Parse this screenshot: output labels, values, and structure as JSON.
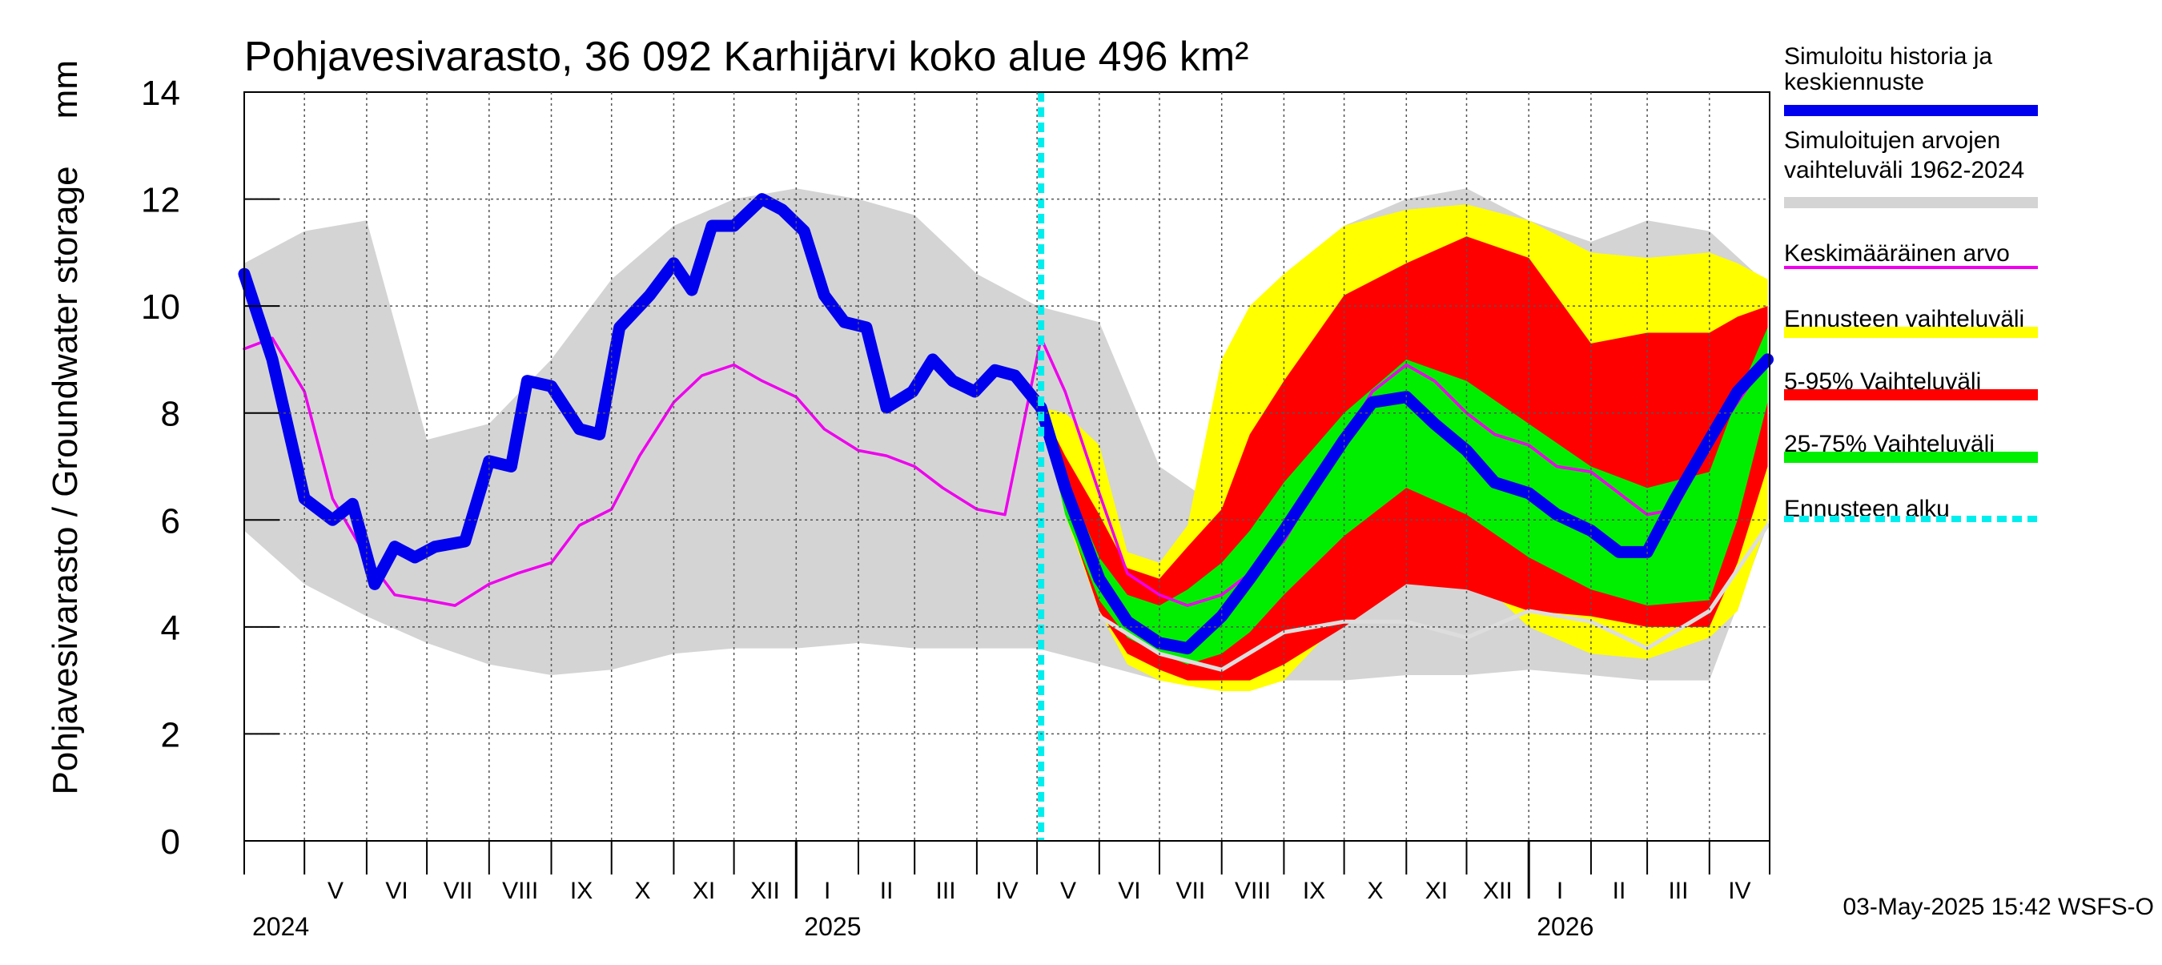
{
  "chart_data": {
    "type": "area",
    "title": "Pohjavesivarasto, 36 092 Karhijärvi koko alue 496 km²",
    "ylabel": "Pohjavesivarasto / Groundwater storage",
    "yunit": "mm",
    "ylim": [
      0,
      14
    ],
    "yticks": [
      "0",
      "2",
      "4",
      "6",
      "8",
      "10",
      "12",
      "14"
    ],
    "xlim": [
      "2024-04-01",
      "2026-05-01"
    ],
    "grid": true,
    "legend_position": "right",
    "months": [
      "V",
      "VI",
      "VII",
      "VIII",
      "IX",
      "X",
      "XI",
      "XII",
      "I",
      "II",
      "III",
      "IV",
      "V",
      "VI",
      "VII",
      "VIII",
      "IX",
      "X",
      "XI",
      "XII",
      "I",
      "II",
      "III",
      "IV"
    ],
    "years": [
      "2024",
      "2025",
      "2026"
    ],
    "forecast_start": "2025-05-03",
    "timestamp": "03-May-2025 15:42 WSFS-O",
    "colors": {
      "history": "#0000ee",
      "range": "#d4d4d4",
      "mean": "#ee00ee",
      "forecast_range": "#ffff00",
      "p5_95": "#ff0000",
      "p25_75": "#00ee00",
      "forecast_start": "#00eeee"
    },
    "legend": [
      {
        "label": "Simuloitu historia ja keskiennuste",
        "color": "#0000ee",
        "style": "thick"
      },
      {
        "label": "Simuloitujen arvojen vaihteluväli 1962-2024",
        "color": "#d4d4d4",
        "style": "thick"
      },
      {
        "label": "Keskimääräinen arvo",
        "color": "#ee00ee",
        "style": "thin"
      },
      {
        "label": "Ennusteen vaihteluväli",
        "color": "#ffff00",
        "style": "thick"
      },
      {
        "label": "5-95% Vaihteluväli",
        "color": "#ff0000",
        "style": "thick"
      },
      {
        "label": "25-75% Vaihteluväli",
        "color": "#00ee00",
        "style": "thick"
      },
      {
        "label": "Ennusteen alku",
        "color": "#00eeee",
        "style": "dashed"
      }
    ],
    "series": [
      {
        "name": "Simuloitu historia ja keskiennuste",
        "x": [
          "2024-04-01",
          "2024-04-15",
          "2024-05-01",
          "2024-05-15",
          "2024-05-25",
          "2024-06-05",
          "2024-06-15",
          "2024-06-25",
          "2024-07-05",
          "2024-07-20",
          "2024-08-01",
          "2024-08-12",
          "2024-08-20",
          "2024-09-01",
          "2024-09-15",
          "2024-09-25",
          "2024-10-05",
          "2024-10-20",
          "2024-11-01",
          "2024-11-10",
          "2024-11-20",
          "2024-12-01",
          "2024-12-15",
          "2024-12-25",
          "2025-01-05",
          "2025-01-15",
          "2025-01-25",
          "2025-02-05",
          "2025-02-15",
          "2025-02-28",
          "2025-03-10",
          "2025-03-20",
          "2025-03-31",
          "2025-04-10",
          "2025-04-20",
          "2025-05-03",
          "2025-05-15",
          "2025-06-01",
          "2025-06-15",
          "2025-07-01",
          "2025-07-15",
          "2025-08-01",
          "2025-08-15",
          "2025-09-01",
          "2025-09-15",
          "2025-10-01",
          "2025-10-15",
          "2025-11-01",
          "2025-11-15",
          "2025-12-01",
          "2025-12-15",
          "2026-01-01",
          "2026-01-15",
          "2026-02-01",
          "2026-02-15",
          "2026-03-01",
          "2026-03-15",
          "2026-04-01",
          "2026-04-15",
          "2026-04-30"
        ],
        "y": [
          10.6,
          9.0,
          6.4,
          6.0,
          6.3,
          4.8,
          5.5,
          5.3,
          5.5,
          5.6,
          7.1,
          7.0,
          8.6,
          8.5,
          7.7,
          7.6,
          9.6,
          10.2,
          10.8,
          10.3,
          11.5,
          11.5,
          12.0,
          11.8,
          11.4,
          10.2,
          9.7,
          9.6,
          8.1,
          8.4,
          9.0,
          8.6,
          8.4,
          8.8,
          8.7,
          8.1,
          6.6,
          4.9,
          4.1,
          3.7,
          3.6,
          4.2,
          4.9,
          5.8,
          6.6,
          7.5,
          8.2,
          8.3,
          7.8,
          7.3,
          6.7,
          6.5,
          6.1,
          5.8,
          5.4,
          5.4,
          6.4,
          7.5,
          8.4,
          9.0
        ]
      },
      {
        "name": "Keskimääräinen arvo",
        "x": [
          "2024-04-01",
          "2024-04-15",
          "2024-05-01",
          "2024-05-15",
          "2024-06-01",
          "2024-06-15",
          "2024-07-01",
          "2024-07-15",
          "2024-08-01",
          "2024-08-15",
          "2024-09-01",
          "2024-09-15",
          "2024-10-01",
          "2024-10-15",
          "2024-11-01",
          "2024-11-15",
          "2024-12-01",
          "2024-12-15",
          "2025-01-01",
          "2025-01-15",
          "2025-02-01",
          "2025-02-15",
          "2025-03-01",
          "2025-03-15",
          "2025-04-01",
          "2025-04-15",
          "2025-05-03",
          "2025-05-15",
          "2025-06-01",
          "2025-06-15",
          "2025-07-01",
          "2025-07-15",
          "2025-08-01",
          "2025-08-15",
          "2025-09-01",
          "2025-09-15",
          "2025-10-01",
          "2025-10-15",
          "2025-11-01",
          "2025-11-15",
          "2025-12-01",
          "2025-12-15",
          "2026-01-01",
          "2026-01-15",
          "2026-02-01",
          "2026-02-15",
          "2026-03-01",
          "2026-03-15",
          "2026-04-01",
          "2026-04-15",
          "2026-04-30"
        ],
        "y": [
          9.2,
          9.4,
          8.4,
          6.4,
          5.3,
          4.6,
          4.5,
          4.4,
          4.8,
          5.0,
          5.2,
          5.9,
          6.2,
          7.2,
          8.2,
          8.7,
          8.9,
          8.6,
          8.3,
          7.7,
          7.3,
          7.2,
          7.0,
          6.6,
          6.2,
          6.1,
          9.4,
          8.4,
          6.5,
          5.0,
          4.6,
          4.4,
          4.6,
          5.0,
          5.6,
          6.5,
          7.5,
          8.4,
          8.9,
          8.6,
          8.0,
          7.6,
          7.4,
          7.0,
          6.9,
          6.5,
          6.1,
          6.2,
          7.4,
          8.2,
          9.0
        ]
      },
      {
        "name": "Simuloitujen arvojen vaihteluväli 1962-2024 (ala)",
        "x": [
          "2025-06-01",
          "2025-07-01",
          "2025-08-01",
          "2025-09-01",
          "2025-10-01",
          "2025-11-01",
          "2025-12-01",
          "2026-01-01",
          "2026-02-01",
          "2026-03-01",
          "2026-04-01",
          "2026-04-30"
        ],
        "y": [
          4.2,
          3.5,
          3.2,
          3.9,
          4.1,
          4.1,
          3.8,
          4.3,
          4.1,
          3.6,
          4.3,
          5.9
        ]
      },
      {
        "name": "Simuloitujen arvojen vaihteluväli 1962-2024",
        "x": [
          "2024-04-01",
          "2024-05-01",
          "2024-06-01",
          "2024-07-01",
          "2024-08-01",
          "2024-09-01",
          "2024-10-01",
          "2024-11-01",
          "2024-12-01",
          "2025-01-01",
          "2025-02-01",
          "2025-03-01",
          "2025-04-01",
          "2025-05-01",
          "2025-06-01",
          "2025-07-01",
          "2025-08-01",
          "2025-09-01",
          "2025-10-01",
          "2025-11-01",
          "2025-12-01",
          "2026-01-01",
          "2026-02-01",
          "2026-03-01",
          "2026-04-01",
          "2026-04-30"
        ],
        "upper": [
          10.8,
          11.4,
          11.6,
          7.5,
          7.8,
          9.0,
          10.5,
          11.5,
          12.0,
          12.2,
          12.0,
          11.7,
          10.6,
          10.0,
          9.7,
          7.0,
          6.2,
          9.6,
          11.5,
          12.0,
          12.2,
          11.6,
          11.2,
          11.6,
          11.4,
          10.4
        ],
        "lower": [
          5.8,
          4.8,
          4.2,
          3.7,
          3.3,
          3.1,
          3.2,
          3.5,
          3.6,
          3.6,
          3.7,
          3.6,
          3.6,
          3.6,
          3.3,
          3.0,
          2.9,
          3.0,
          3.0,
          3.1,
          3.1,
          3.2,
          3.1,
          3.0,
          3.0,
          5.9
        ]
      },
      {
        "name": "Ennusteen vaihteluväli",
        "x": [
          "2025-05-03",
          "2025-05-15",
          "2025-06-01",
          "2025-06-15",
          "2025-07-01",
          "2025-07-15",
          "2025-08-01",
          "2025-08-15",
          "2025-09-01",
          "2025-10-01",
          "2025-11-01",
          "2025-12-01",
          "2026-01-01",
          "2026-02-01",
          "2026-03-01",
          "2026-04-01",
          "2026-04-15",
          "2026-04-30"
        ],
        "upper": [
          8.1,
          8.0,
          7.4,
          5.4,
          5.2,
          5.9,
          9.0,
          10.0,
          10.6,
          11.5,
          11.8,
          11.9,
          11.6,
          11.0,
          10.9,
          11.0,
          10.8,
          10.5
        ],
        "lower": [
          8.1,
          6.1,
          4.3,
          3.3,
          3.0,
          2.9,
          2.8,
          2.8,
          3.0,
          4.2,
          5.6,
          5.1,
          4.0,
          3.5,
          3.4,
          3.8,
          4.3,
          6.0
        ]
      },
      {
        "name": "5-95% Vaihteluväli",
        "x": [
          "2025-05-03",
          "2025-05-15",
          "2025-06-01",
          "2025-06-15",
          "2025-07-01",
          "2025-07-15",
          "2025-08-01",
          "2025-08-15",
          "2025-09-01",
          "2025-10-01",
          "2025-11-01",
          "2025-12-01",
          "2026-01-01",
          "2026-02-01",
          "2026-03-01",
          "2026-04-01",
          "2026-04-15",
          "2026-04-30"
        ],
        "upper": [
          8.1,
          7.2,
          6.1,
          5.1,
          4.9,
          5.5,
          6.2,
          7.6,
          8.6,
          10.2,
          10.8,
          11.3,
          10.9,
          9.3,
          9.5,
          9.5,
          9.8,
          10.0
        ],
        "lower": [
          8.1,
          6.2,
          4.3,
          3.5,
          3.2,
          3.0,
          3.0,
          3.0,
          3.3,
          4.0,
          4.8,
          4.7,
          4.3,
          4.2,
          4.0,
          4.0,
          5.2,
          7.0
        ]
      },
      {
        "name": "25-75% Vaihteluväli",
        "x": [
          "2025-05-03",
          "2025-05-15",
          "2025-06-01",
          "2025-06-15",
          "2025-07-01",
          "2025-07-15",
          "2025-08-01",
          "2025-08-15",
          "2025-09-01",
          "2025-10-01",
          "2025-11-01",
          "2025-12-01",
          "2026-01-01",
          "2026-02-01",
          "2026-03-01",
          "2026-04-01",
          "2026-04-15",
          "2026-04-30"
        ],
        "upper": [
          8.1,
          6.8,
          5.3,
          4.6,
          4.4,
          4.7,
          5.2,
          5.8,
          6.7,
          8.0,
          9.0,
          8.6,
          7.8,
          7.0,
          6.6,
          6.9,
          8.3,
          9.6
        ],
        "lower": [
          8.1,
          6.1,
          4.5,
          3.8,
          3.5,
          3.3,
          3.5,
          3.9,
          4.6,
          5.7,
          6.6,
          6.1,
          5.3,
          4.7,
          4.4,
          4.5,
          6.0,
          8.2
        ]
      }
    ]
  }
}
